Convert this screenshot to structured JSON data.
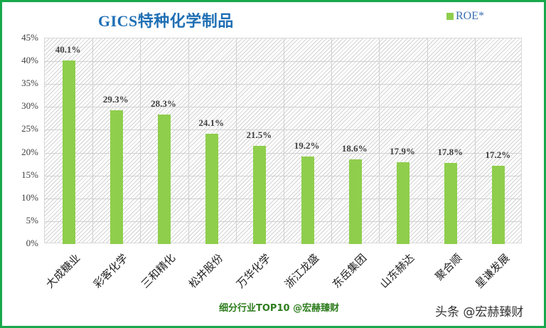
{
  "chart_data": {
    "type": "bar",
    "title": "GICS特种化学制品",
    "legend": [
      "ROE*"
    ],
    "legend_position": "top-right",
    "xlabel": "",
    "ylabel": "",
    "ylim": [
      0,
      45
    ],
    "y_ticks": [
      "0%",
      "5%",
      "10%",
      "15%",
      "20%",
      "25%",
      "30%",
      "35%",
      "40%",
      "45%"
    ],
    "grid": true,
    "categories": [
      "大成糖业",
      "彩客化学",
      "三和精化",
      "松井股份",
      "万华化学",
      "浙江龙盛",
      "东岳集团",
      "山东赫达",
      "聚合顺",
      "星谦发展"
    ],
    "series": [
      {
        "name": "ROE*",
        "color": "#8fce4c",
        "values": [
          40.1,
          29.3,
          28.3,
          24.1,
          21.5,
          19.2,
          18.6,
          17.9,
          17.8,
          17.2
        ],
        "labels": [
          "40.1%",
          "29.3%",
          "28.3%",
          "24.1%",
          "21.5%",
          "19.2%",
          "18.6%",
          "17.9%",
          "17.8%",
          "17.2%"
        ]
      }
    ],
    "annotations": [
      "细分行业TOP10 @宏赫臻财"
    ]
  },
  "footer": "细分行业TOP10 @宏赫臻财",
  "watermark": "头条 @宏赫臻财",
  "colors": {
    "bar": "#8fce4c",
    "title": "#1f6fb4",
    "border": "#17a84c",
    "footer": "#2e7d1e"
  }
}
